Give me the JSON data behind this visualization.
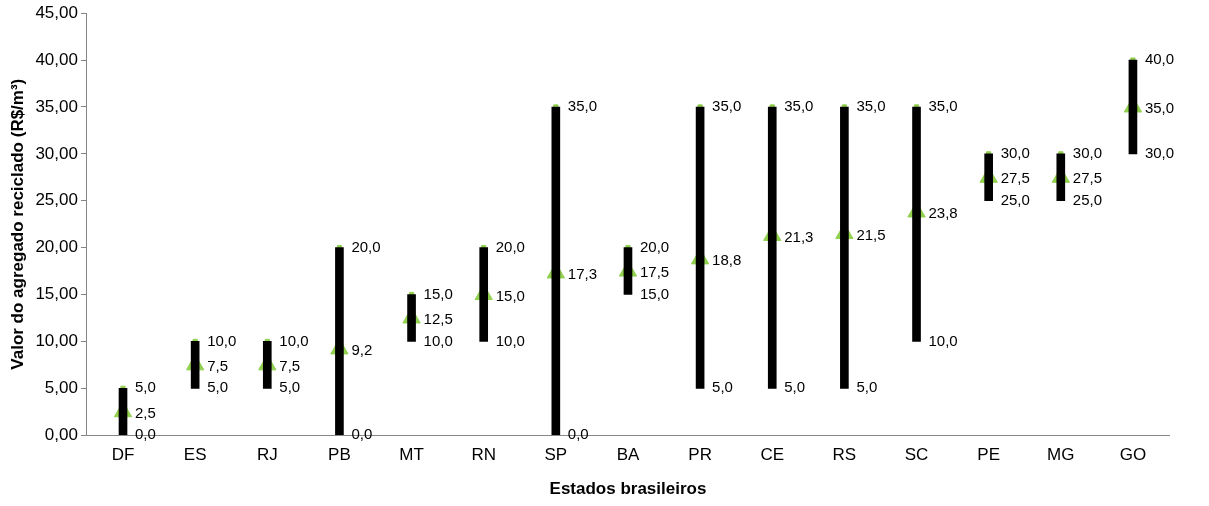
{
  "chart_data": {
    "type": "bar",
    "xlabel": "Estados brasileiros",
    "ylabel": "Valor do agregado reciclado (R$/m³)",
    "categories": [
      "DF",
      "ES",
      "RJ",
      "PB",
      "MT",
      "RN",
      "SP",
      "BA",
      "PR",
      "CE",
      "RS",
      "SC",
      "PE",
      "MG",
      "GO"
    ],
    "ylim": [
      0,
      45
    ],
    "yticks": [
      {
        "value": 0,
        "label": "0,00"
      },
      {
        "value": 5,
        "label": "5,00"
      },
      {
        "value": 10,
        "label": "10,00"
      },
      {
        "value": 15,
        "label": "15,00"
      },
      {
        "value": 20,
        "label": "20,00"
      },
      {
        "value": 25,
        "label": "25,00"
      },
      {
        "value": 30,
        "label": "30,00"
      },
      {
        "value": 35,
        "label": "35,00"
      },
      {
        "value": 40,
        "label": "40,00"
      },
      {
        "value": 45,
        "label": "45,00"
      }
    ],
    "grid": false,
    "legend": false,
    "series": [
      {
        "color": "#000000",
        "base": [
          0,
          5,
          5,
          0,
          10,
          10,
          0,
          15,
          5,
          5,
          5,
          10,
          25,
          25,
          30
        ],
        "values": [
          5,
          5,
          5,
          20,
          5,
          10,
          35,
          5,
          30,
          30,
          30,
          25,
          5,
          5,
          10
        ]
      },
      {
        "type": "scatter",
        "marker": "square",
        "color": "#92d050",
        "values": [
          5,
          10,
          10,
          20,
          15,
          20,
          35,
          20,
          35,
          35,
          35,
          35,
          30,
          30,
          40
        ],
        "value_labels": [
          "5,0",
          "10,0",
          "10,0",
          "20,0",
          "15,0",
          "20,0",
          "35,0",
          "20,0",
          "35,0",
          "35,0",
          "35,0",
          "35,0",
          "30,0",
          "30,0",
          "40,0"
        ]
      },
      {
        "type": "scatter",
        "marker": "triangle",
        "color": "#92d050",
        "values": [
          2.5,
          7.5,
          7.5,
          9.2,
          12.5,
          15,
          17.3,
          17.5,
          18.8,
          21.3,
          21.5,
          23.8,
          27.5,
          27.5,
          35
        ],
        "value_labels": [
          "2,5",
          "7,5",
          "7,5",
          "9,2",
          "12,5",
          "15,0",
          "17,3",
          "17,5",
          "18,8",
          "21,3",
          "21,5",
          "23,8",
          "27,5",
          "27,5",
          "35,0"
        ]
      }
    ],
    "annotations": [
      {
        "text": "0,0",
        "x": "DF",
        "y": 0
      },
      {
        "text": "5,0",
        "x": "ES",
        "y": 5
      },
      {
        "text": "5,0",
        "x": "RJ",
        "y": 5
      },
      {
        "text": "0,0",
        "x": "PB",
        "y": 0
      },
      {
        "text": "10,0",
        "x": "MT",
        "y": 10
      },
      {
        "text": "10,0",
        "x": "RN",
        "y": 10
      },
      {
        "text": "0,0",
        "x": "SP",
        "y": 0
      },
      {
        "text": "15,0",
        "x": "BA",
        "y": 15
      },
      {
        "text": "5,0",
        "x": "PR",
        "y": 5
      },
      {
        "text": "5,0",
        "x": "CE",
        "y": 5
      },
      {
        "text": "5,0",
        "x": "RS",
        "y": 5
      },
      {
        "text": "10,0",
        "x": "SC",
        "y": 10
      },
      {
        "text": "25,0",
        "x": "PE",
        "y": 25
      },
      {
        "text": "25,0",
        "x": "MG",
        "y": 25
      },
      {
        "text": "30,0",
        "x": "GO",
        "y": 30
      }
    ]
  }
}
